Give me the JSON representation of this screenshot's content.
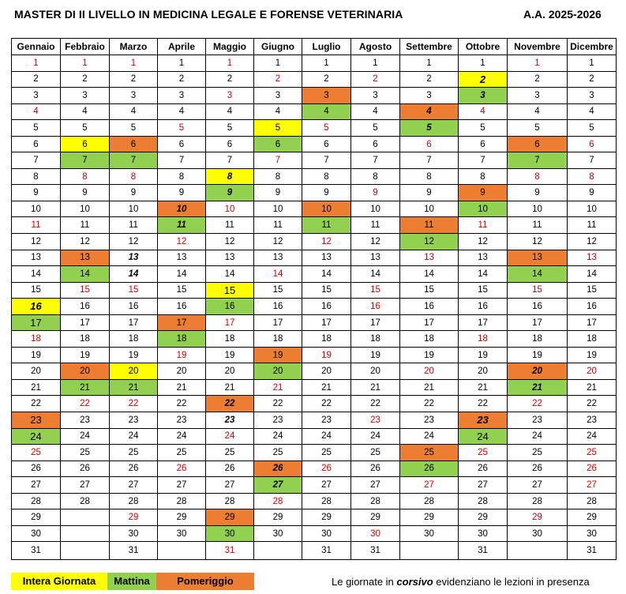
{
  "header": {
    "title": "MASTER DI II LIVELLO IN MEDICINA LEGALE E FORENSE VETERINARIA",
    "year": "A.A. 2025-2026"
  },
  "colors": {
    "intera": "#ffff00",
    "mattina": "#92d050",
    "pomeriggio": "#ed7d31",
    "weekend_text": "#d00000"
  },
  "calendar": {
    "months": [
      "Gennaio",
      "Febbraio",
      "Marzo",
      "Aprile",
      "Maggio",
      "Giugno",
      "Luglio",
      "Agosto",
      "Settembre",
      "Ottobre",
      "Novembre",
      "Dicembre"
    ],
    "columns": [
      {
        "days": 31,
        "red": [
          1,
          4,
          11,
          18,
          25
        ],
        "yellow": [
          16
        ],
        "green": [
          17,
          24
        ],
        "orange": [
          23
        ],
        "italic": [
          16
        ]
      },
      {
        "days": 28,
        "red": [
          1,
          8,
          15,
          22
        ],
        "yellow": [
          6
        ],
        "green": [
          7,
          14,
          21
        ],
        "orange": [
          13,
          20
        ],
        "italic": []
      },
      {
        "days": 31,
        "red": [
          1,
          8,
          15,
          22,
          29
        ],
        "yellow": [
          20
        ],
        "green": [
          7,
          21
        ],
        "orange": [
          6
        ],
        "italic": [
          13,
          14
        ]
      },
      {
        "days": 30,
        "red": [
          5,
          12,
          19,
          26
        ],
        "yellow": [],
        "green": [
          11,
          18
        ],
        "orange": [
          10,
          17
        ],
        "italic": [
          10,
          11
        ]
      },
      {
        "days": 31,
        "red": [
          1,
          3,
          10,
          17,
          24,
          31
        ],
        "yellow": [
          8,
          15
        ],
        "green": [
          9,
          16,
          30
        ],
        "orange": [
          22,
          29
        ],
        "italic": [
          8,
          9,
          22,
          23
        ]
      },
      {
        "days": 30,
        "red": [
          2,
          7,
          14,
          21,
          28
        ],
        "yellow": [
          5
        ],
        "green": [
          6,
          20,
          27
        ],
        "orange": [
          19,
          26
        ],
        "italic": [
          26,
          27
        ]
      },
      {
        "days": 31,
        "red": [
          5,
          12,
          19,
          26
        ],
        "yellow": [],
        "green": [
          4,
          11
        ],
        "orange": [
          3,
          10
        ],
        "italic": []
      },
      {
        "days": 31,
        "red": [
          2,
          9,
          15,
          16,
          23,
          30
        ],
        "yellow": [],
        "green": [],
        "orange": [],
        "italic": []
      },
      {
        "days": 30,
        "red": [
          6,
          13,
          20,
          27
        ],
        "yellow": [],
        "green": [
          5,
          12,
          26
        ],
        "orange": [
          4,
          11,
          25
        ],
        "italic": [
          4,
          5
        ]
      },
      {
        "days": 31,
        "red": [
          4,
          11,
          18,
          25
        ],
        "yellow": [
          2
        ],
        "green": [
          3,
          10,
          24
        ],
        "orange": [
          9,
          23
        ],
        "italic": [
          2,
          3,
          23
        ]
      },
      {
        "days": 30,
        "red": [
          1,
          8,
          15,
          22,
          29
        ],
        "yellow": [],
        "green": [
          7,
          14,
          21
        ],
        "orange": [
          6,
          13,
          20
        ],
        "italic": [
          20,
          21
        ]
      },
      {
        "days": 31,
        "red": [
          6,
          8,
          13,
          20,
          25,
          26,
          27
        ],
        "yellow": [],
        "green": [],
        "orange": [],
        "italic": []
      }
    ]
  },
  "legend": {
    "intera": "Intera Giornata",
    "mattina": "Mattina",
    "pomeriggio": "Pomeriggio",
    "note_before": "Le giornate in ",
    "note_italic": "corsivo",
    "note_after": "  evidenziano le lezioni in presenza"
  }
}
